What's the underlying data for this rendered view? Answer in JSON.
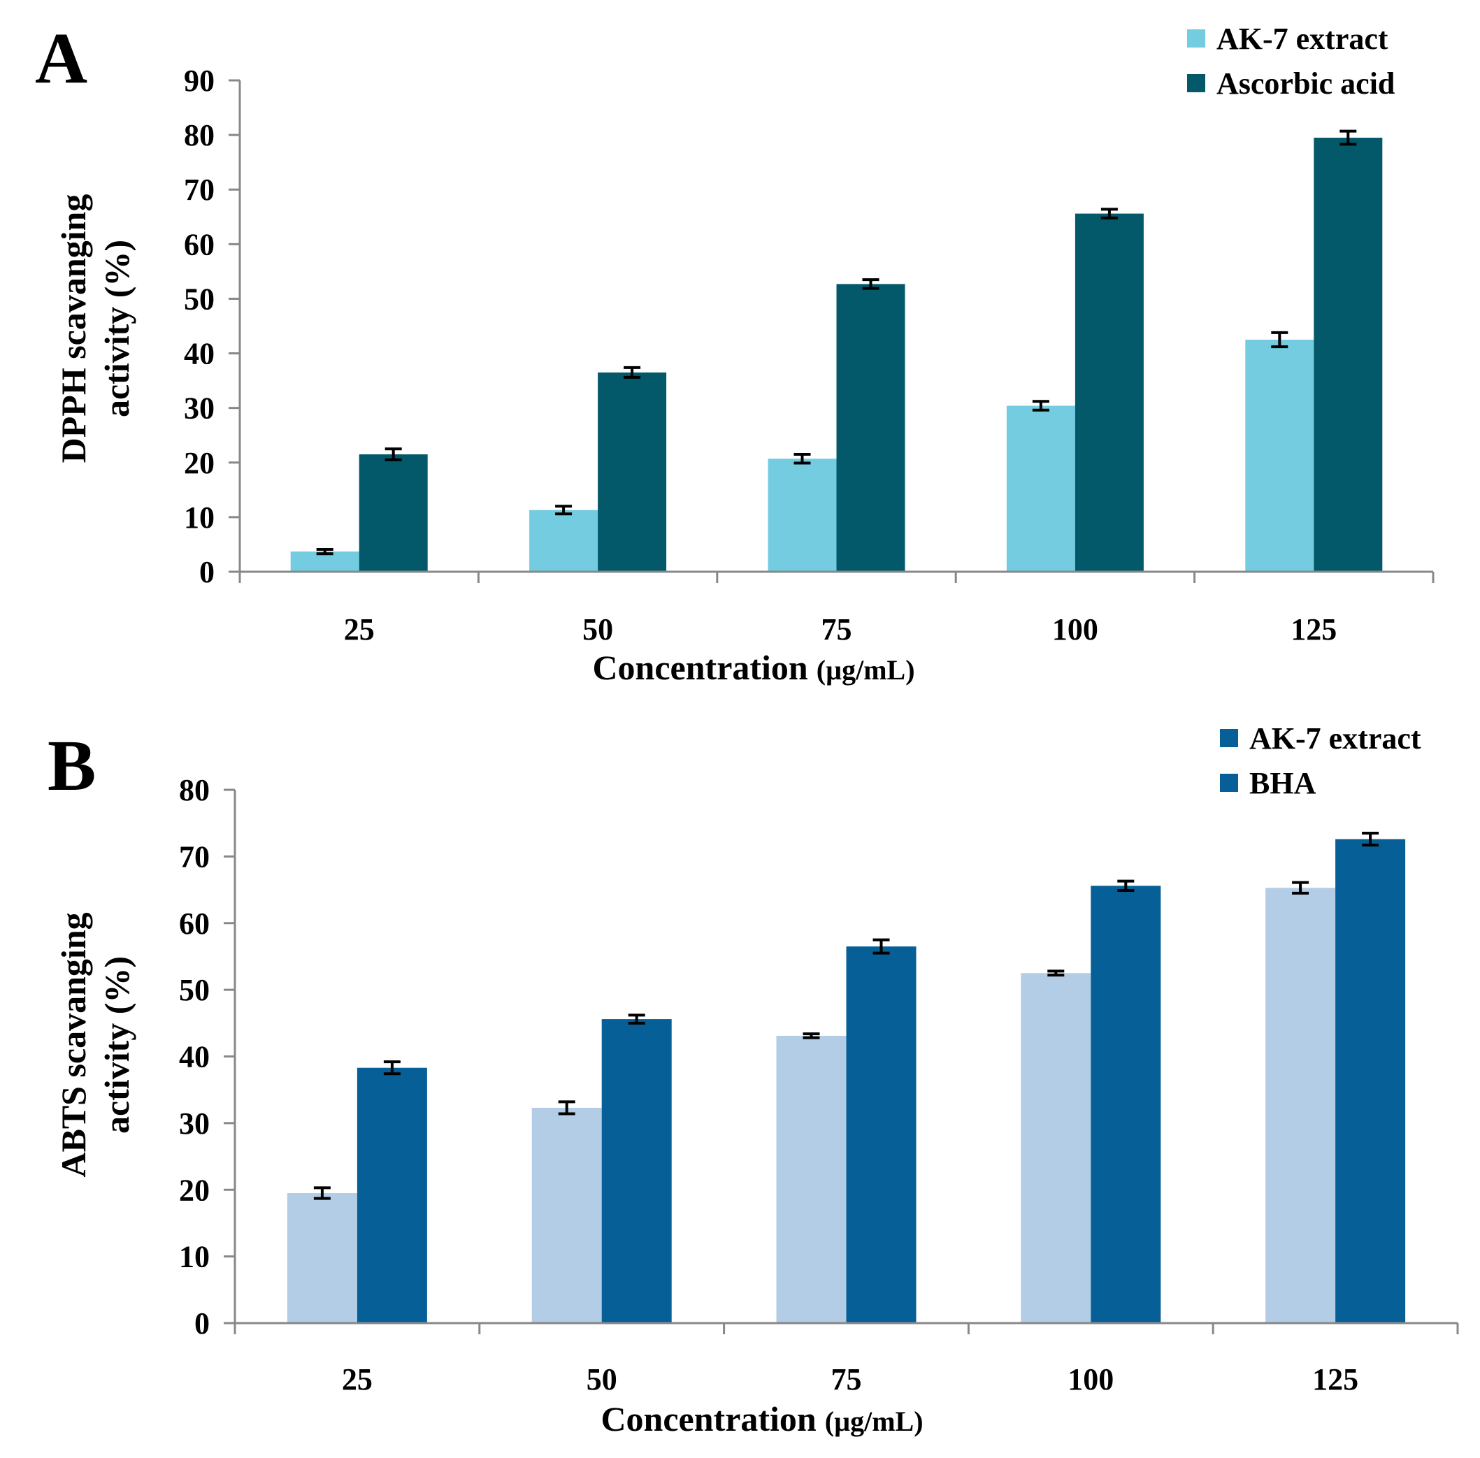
{
  "chart_data": [
    {
      "panel": "A",
      "type": "bar",
      "categories": [
        "25",
        "50",
        "75",
        "100",
        "125"
      ],
      "series": [
        {
          "name": "AK-7 extract",
          "color": "#74cce0",
          "values": [
            3.7,
            11.3,
            20.7,
            30.4,
            42.5
          ],
          "errors": [
            0.4,
            0.7,
            0.8,
            0.8,
            1.3
          ]
        },
        {
          "name": "Ascorbic acid",
          "color": "#03596a",
          "values": [
            21.5,
            36.5,
            52.7,
            65.6,
            79.5
          ],
          "errors": [
            1.0,
            0.9,
            0.8,
            0.8,
            1.2
          ]
        }
      ],
      "ylim": [
        0,
        90
      ],
      "yticks": [
        "0",
        "10",
        "20",
        "30",
        "40",
        "50",
        "60",
        "70",
        "80",
        "90"
      ],
      "ylabel": "DPPH scavanging activity (%)",
      "ylabel_line1": "DPPH scavanging",
      "ylabel_line2": "activity (%)",
      "xlabel": "Concentration",
      "xunit": "(µg/mL)",
      "grid": false,
      "legend_position": "top-right"
    },
    {
      "panel": "B",
      "type": "bar",
      "categories": [
        "25",
        "50",
        "75",
        "100",
        "125"
      ],
      "series": [
        {
          "name": "AK-7 extract",
          "color": "#b4cde6",
          "legend_color": "#065f96",
          "values": [
            19.5,
            32.3,
            43.1,
            52.5,
            65.3
          ],
          "errors": [
            0.8,
            0.9,
            0.3,
            0.3,
            0.8
          ]
        },
        {
          "name": "BHA",
          "color": "#065f96",
          "values": [
            38.3,
            45.6,
            56.5,
            65.6,
            72.6
          ],
          "errors": [
            0.9,
            0.6,
            1.0,
            0.7,
            0.9
          ]
        }
      ],
      "ylim": [
        0,
        80
      ],
      "yticks": [
        "0",
        "10",
        "20",
        "30",
        "40",
        "50",
        "60",
        "70",
        "80"
      ],
      "ylabel": "ABTS scavanging activity (%)",
      "ylabel_line1": "ABTS scavanging",
      "ylabel_line2": "activity (%)",
      "xlabel": "Concentration",
      "xunit": "(µg/mL)",
      "grid": false,
      "legend_position": "top-right"
    }
  ]
}
